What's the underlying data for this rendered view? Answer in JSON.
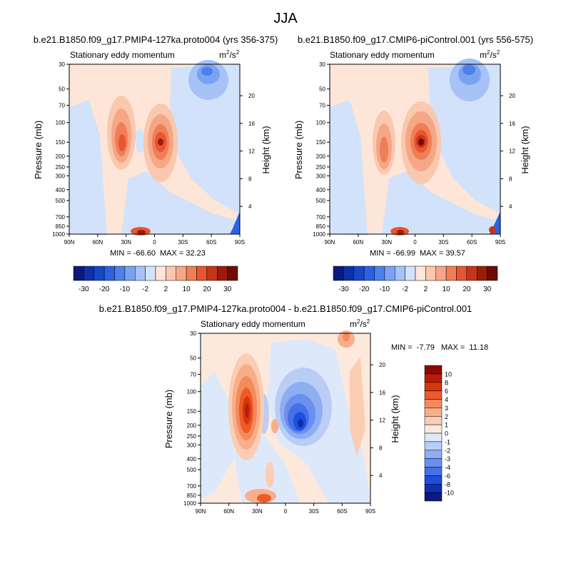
{
  "figure": {
    "title": "JJA"
  },
  "chart_data": [
    {
      "type": "heatmap",
      "id": "panel1",
      "title": "b.e21.B1850.f09_g17.PMIP4-127ka.proto004 (yrs 356-375)",
      "subtitle": "Stationary eddy momentum",
      "units_base": "m",
      "units_exp_top": "2",
      "units_slash": "/s",
      "units_exp_bottom": "2",
      "xlabel": "",
      "ylabel": "Pressure (mb)",
      "ylabel_right": "Height (km)",
      "x_ticks": [
        "90N",
        "60N",
        "30N",
        "0",
        "30S",
        "60S",
        "90S"
      ],
      "x_range": [
        90,
        -90
      ],
      "y_ticks": [
        30,
        50,
        70,
        100,
        150,
        200,
        250,
        300,
        400,
        500,
        700,
        850,
        1000
      ],
      "y_range": [
        30,
        1000
      ],
      "height_ticks": [
        4,
        8,
        12,
        16,
        20
      ],
      "min_label": "MIN = -66.60",
      "max_label": "MAX = 32.23",
      "levels": [
        "-30",
        "-20",
        "-10",
        "-2",
        "2",
        "10",
        "20",
        "30"
      ],
      "features": [
        {
          "name": "NH subtropical positive max",
          "lat": 33,
          "p": 150,
          "value": 25
        },
        {
          "name": "equatorial positive max",
          "lat": -5,
          "p": 150,
          "value": 32
        },
        {
          "name": "SH mid-latitude negative",
          "lat": -55,
          "p": 40,
          "value": -20
        },
        {
          "name": "NH surface positive",
          "lat": 30,
          "p": 1000,
          "value": 30
        },
        {
          "name": "SH surface negative",
          "lat": -88,
          "p": 900,
          "value": -66
        }
      ]
    },
    {
      "type": "heatmap",
      "id": "panel2",
      "title": "b.e21.B1850.f09_g17.CMIP6-piControl.001 (yrs 556-575)",
      "subtitle": "Stationary eddy momentum",
      "units_base": "m",
      "units_exp_top": "2",
      "units_slash": "/s",
      "units_exp_bottom": "2",
      "ylabel": "Pressure (mb)",
      "ylabel_right": "Height (km)",
      "x_ticks": [
        "90N",
        "60N",
        "30N",
        "0",
        "30S",
        "60S",
        "90S"
      ],
      "x_range": [
        90,
        -90
      ],
      "y_ticks": [
        30,
        50,
        70,
        100,
        150,
        200,
        250,
        300,
        400,
        500,
        700,
        850,
        1000
      ],
      "y_range": [
        30,
        1000
      ],
      "height_ticks": [
        4,
        8,
        12,
        16,
        20
      ],
      "min_label": "MIN = -66.99",
      "max_label": "MAX = 39.57",
      "levels": [
        "-30",
        "-20",
        "-10",
        "-2",
        "2",
        "10",
        "20",
        "30"
      ],
      "features": [
        {
          "name": "NH subtropical positive max",
          "lat": 30,
          "p": 180,
          "value": 18
        },
        {
          "name": "equatorial positive max",
          "lat": -5,
          "p": 150,
          "value": 39
        },
        {
          "name": "SH mid-latitude negative",
          "lat": -55,
          "p": 40,
          "value": -25
        },
        {
          "name": "NH surface positive",
          "lat": 25,
          "p": 1000,
          "value": 25
        },
        {
          "name": "SH surface negative",
          "lat": -88,
          "p": 900,
          "value": -67
        }
      ]
    },
    {
      "type": "heatmap",
      "id": "panel3",
      "title": "b.e21.B1850.f09_g17.PMIP4-127ka.proto004 - b.e21.B1850.f09_g17.CMIP6-piControl.001",
      "subtitle": "Stationary eddy momentum",
      "units_base": "m",
      "units_exp_top": "2",
      "units_slash": "/s",
      "units_exp_bottom": "2",
      "ylabel": "Pressure (mb)",
      "ylabel_right": "Height (km)",
      "x_ticks": [
        "90N",
        "60N",
        "30N",
        "0",
        "30S",
        "60S",
        "90S"
      ],
      "x_range": [
        90,
        -90
      ],
      "y_ticks": [
        30,
        50,
        70,
        100,
        150,
        200,
        250,
        300,
        400,
        500,
        700,
        850,
        1000
      ],
      "y_range": [
        30,
        1000
      ],
      "height_ticks": [
        4,
        8,
        12,
        16,
        20
      ],
      "minmax_label": "MIN =  -7.79   MAX =  11.18",
      "levels": [
        "10",
        "8",
        "6",
        "4",
        "3",
        "2",
        "1",
        "0",
        "-1",
        "-2",
        "-3",
        "-4",
        "-6",
        "-8",
        "-10"
      ],
      "features": [
        {
          "name": "NH subtropical positive difference",
          "lat": 43,
          "p": 140,
          "value": 11
        },
        {
          "name": "equatorial negative difference",
          "lat": -12,
          "p": 170,
          "value": -7.8
        },
        {
          "name": "SH upper positive",
          "lat": -65,
          "p": 30,
          "value": 4
        },
        {
          "name": "NH surface positive",
          "lat": 30,
          "p": 1000,
          "value": 6
        }
      ]
    }
  ],
  "colors": {
    "diverging": [
      "#0a1a7a",
      "#1030a8",
      "#1846c8",
      "#2a62e0",
      "#4c80ec",
      "#7aa2f2",
      "#a6c2f6",
      "#d2e2fa",
      "#fde6d8",
      "#f9c8ae",
      "#f5a684",
      "#f07e58",
      "#e65630",
      "#c8341a",
      "#9a1c0c",
      "#6e0c04"
    ],
    "diff": [
      "#8a0a06",
      "#b81c0a",
      "#d8360f",
      "#ee5a28",
      "#f58a5a",
      "#f8ae8a",
      "#fbcdb3",
      "#fde9dc",
      "#dde8fa",
      "#b9cdf6",
      "#8eaef2",
      "#6b8ff0",
      "#4670e8",
      "#1f4fda",
      "#0e2fb0",
      "#0a1a80"
    ]
  }
}
